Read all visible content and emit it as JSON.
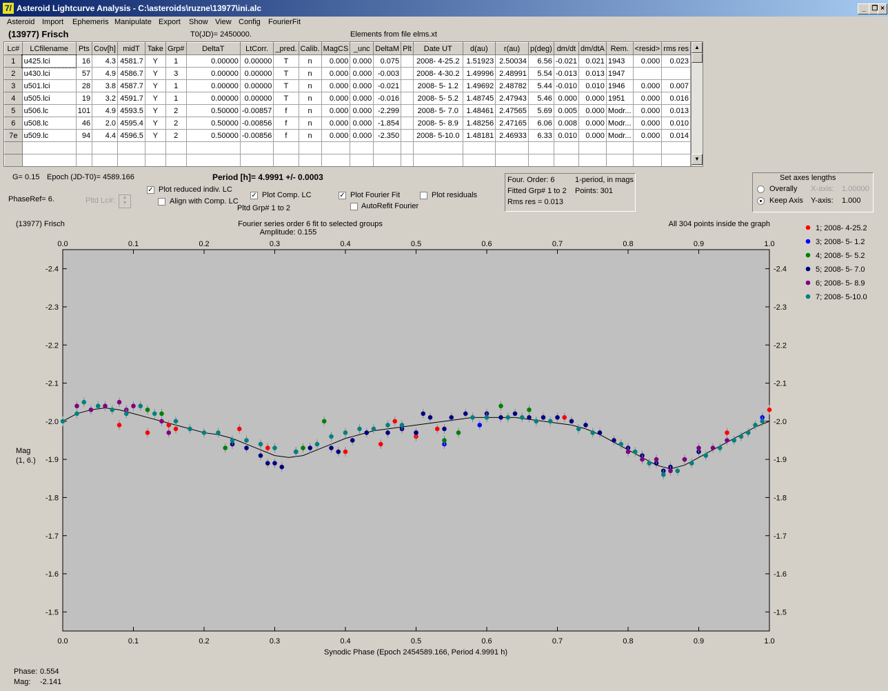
{
  "window": {
    "title": "Asteroid Lightcurve Analysis - C:\\asteroids\\ruzne\\13977\\ini.alc",
    "app_icon_glyph": "7/"
  },
  "menu": [
    "Asteroid",
    "Import",
    "Ephemeris",
    "Manipulate",
    "Export",
    "Show",
    "View",
    "Config",
    "FourierFit"
  ],
  "header": {
    "object": "(13977) Frisch",
    "t0": "T0(JD)= 2450000.",
    "elements": "Elements from file elms.xt"
  },
  "table": {
    "columns": [
      "Lc#",
      "LCfilename",
      "Pts",
      "Cov[h]",
      "midT",
      "Take",
      "Grp#",
      "DeltaT",
      "LtCorr.",
      "_pred.",
      "Calib.",
      "MagCS",
      "_unc",
      "DeltaM",
      "Plt",
      "Date UT",
      "d(au)",
      "r(au)",
      "p(deg)",
      "dm/dt",
      "dm/dtA",
      "Rem.",
      "<resid>",
      "rms res"
    ],
    "rows": [
      [
        "1",
        "u425.lci",
        "16",
        "4.3",
        "4581.7",
        "Y",
        "1",
        "0.00000",
        "0.00000",
        "T",
        "n",
        "0.000",
        "0.000",
        "0.075",
        "",
        "2008- 4-25.2",
        "1.51923",
        "2.50034",
        "6.56",
        "-0.021",
        "0.021",
        "1943",
        "0.000",
        "0.023"
      ],
      [
        "2",
        "u430.lci",
        "57",
        "4.9",
        "4586.7",
        "Y",
        "3",
        "0.00000",
        "0.00000",
        "T",
        "n",
        "0.000",
        "0.000",
        "-0.003",
        "",
        "2008- 4-30.2",
        "1.49996",
        "2.48991",
        "5.54",
        "-0.013",
        "0.013",
        "1947",
        "",
        ""
      ],
      [
        "3",
        "u501.lci",
        "28",
        "3.8",
        "4587.7",
        "Y",
        "1",
        "0.00000",
        "0.00000",
        "T",
        "n",
        "0.000",
        "0.000",
        "-0.021",
        "",
        "2008- 5- 1.2",
        "1.49692",
        "2.48782",
        "5.44",
        "-0.010",
        "0.010",
        "1946",
        "0.000",
        "0.007"
      ],
      [
        "4",
        "u505.lci",
        "19",
        "3.2",
        "4591.7",
        "Y",
        "1",
        "0.00000",
        "0.00000",
        "T",
        "n",
        "0.000",
        "0.000",
        "-0.016",
        "",
        "2008- 5- 5.2",
        "1.48745",
        "2.47943",
        "5.46",
        "0.000",
        "0.000",
        "1951",
        "0.000",
        "0.016"
      ],
      [
        "5",
        "u506.lc",
        "101",
        "4.9",
        "4593.5",
        "Y",
        "2",
        "0.50000",
        "-0.00857",
        "f",
        "n",
        "0.000",
        "0.000",
        "-2.299",
        "",
        "2008- 5- 7.0",
        "1.48461",
        "2.47565",
        "5.69",
        "0.005",
        "0.000",
        "Modr...",
        "0.000",
        "0.013"
      ],
      [
        "6",
        "u508.lc",
        "46",
        "2.0",
        "4595.4",
        "Y",
        "2",
        "0.50000",
        "-0.00856",
        "f",
        "n",
        "0.000",
        "0.000",
        "-1.854",
        "",
        "2008- 5- 8.9",
        "1.48256",
        "2.47165",
        "6.06",
        "0.008",
        "0.000",
        "Modr...",
        "0.000",
        "0.010"
      ],
      [
        "7e",
        "u509.lc",
        "94",
        "4.4",
        "4596.5",
        "Y",
        "2",
        "0.50000",
        "-0.00856",
        "f",
        "n",
        "0.000",
        "0.000",
        "-2.350",
        "",
        "2008- 5-10.0",
        "1.48181",
        "2.46933",
        "6.33",
        "0.010",
        "0.000",
        "Modr...",
        "0.000",
        "0.014"
      ],
      [
        "",
        "",
        "",
        "",
        "",
        "",
        "",
        "",
        "",
        "",
        "",
        "",
        "",
        "",
        "",
        "",
        "",
        "",
        "",
        "",
        "",
        "",
        "",
        ""
      ],
      [
        "",
        "",
        "",
        "",
        "",
        "",
        "",
        "",
        "",
        "",
        "",
        "",
        "",
        "",
        "",
        "",
        "",
        "",
        "",
        "",
        "",
        "",
        "",
        ""
      ]
    ]
  },
  "controls": {
    "g": "G= 0.15",
    "epoch": "Epoch (JD-T0)= 4589.166",
    "period": "Period [h]= 4.9991 +/- 0.0003",
    "phaseref": "PhaseRef= 6.",
    "pltd_lc": "Pltd Lc#:",
    "plot_reduced": "Plot reduced indiv. LC",
    "align_comp": "Align with Comp. LC",
    "plot_comp": "Plot Comp. LC",
    "pltd_grp": "Pltd Grp#  1   to   2",
    "plot_fourier": "Plot Fourier Fit",
    "autorefit": "AutoRefit Fourier",
    "plot_residuals": "Plot residuals"
  },
  "fourier_box": {
    "order": "Four. Order:  6",
    "mode": "1-period, in mags",
    "fitted": "Fitted Grp# 1 to 2",
    "points": "Points: 301",
    "rms": "Rms res      = 0.013"
  },
  "axes_box": {
    "title": "Set axes lengths",
    "overally": "Overally",
    "keep_axis": "Keep Axis",
    "x_label": "X-axis:",
    "x_value": "1.00000",
    "y_label": "Y-axis:",
    "y_value": "1.000"
  },
  "status": {
    "phase_label": "Phase:",
    "phase_value": "0.554",
    "mag_label": "Mag:",
    "mag_value": "-2.141"
  },
  "chart_data": {
    "type": "scatter",
    "title": "Fourier series order 6 fit to selected groups",
    "subtitle": "Amplitude: 0.155",
    "object_label": "(13977) Frisch",
    "note": "All 304 points inside the graph",
    "xlabel": "Synodic Phase (Epoch 2454589.166, Period 4.9991 h)",
    "ylabel": "Mag\n(1, 6.)",
    "xlim": [
      0.0,
      1.0
    ],
    "ylim": [
      -2.45,
      -1.45
    ],
    "y_inverted": true,
    "x_ticks": [
      "0.0",
      "0.1",
      "0.2",
      "0.3",
      "0.4",
      "0.5",
      "0.6",
      "0.7",
      "0.8",
      "0.9",
      "1.0"
    ],
    "y_ticks": [
      "-2.4",
      "-2.3",
      "-2.2",
      "-2.1",
      "-2.0",
      "-1.9",
      "-1.8",
      "-1.7",
      "-1.6",
      "-1.5"
    ],
    "grid": false,
    "legend_position": "right",
    "series": [
      {
        "name": "1; 2008- 4-25.2",
        "color": "#ff0000",
        "points": [
          [
            0.08,
            -1.99
          ],
          [
            0.12,
            -1.97
          ],
          [
            0.15,
            -1.99
          ],
          [
            0.16,
            -1.98
          ],
          [
            0.25,
            -1.98
          ],
          [
            0.29,
            -1.93
          ],
          [
            0.4,
            -1.92
          ],
          [
            0.45,
            -1.94
          ],
          [
            0.47,
            -2.0
          ],
          [
            0.5,
            -1.96
          ],
          [
            0.53,
            -1.98
          ],
          [
            0.71,
            -2.01
          ],
          [
            0.94,
            -1.97
          ],
          [
            1.0,
            -2.03
          ]
        ]
      },
      {
        "name": "3; 2008- 5- 1.2",
        "color": "#0000ff",
        "points": [
          [
            0.5,
            -1.97
          ],
          [
            0.54,
            -1.94
          ],
          [
            0.59,
            -1.99
          ],
          [
            0.99,
            -2.01
          ]
        ]
      },
      {
        "name": "4; 2008- 5- 5.2",
        "color": "#008000",
        "points": [
          [
            0.12,
            -2.03
          ],
          [
            0.14,
            -2.02
          ],
          [
            0.23,
            -1.93
          ],
          [
            0.34,
            -1.93
          ],
          [
            0.37,
            -2.0
          ],
          [
            0.54,
            -1.95
          ],
          [
            0.56,
            -1.97
          ],
          [
            0.62,
            -2.04
          ],
          [
            0.66,
            -2.03
          ]
        ]
      },
      {
        "name": "5; 2008- 5- 7.0",
        "color": "#000080",
        "points": [
          [
            0.24,
            -1.94
          ],
          [
            0.26,
            -1.93
          ],
          [
            0.28,
            -1.91
          ],
          [
            0.29,
            -1.89
          ],
          [
            0.3,
            -1.89
          ],
          [
            0.31,
            -1.88
          ],
          [
            0.33,
            -1.92
          ],
          [
            0.35,
            -1.93
          ],
          [
            0.38,
            -1.93
          ],
          [
            0.39,
            -1.92
          ],
          [
            0.41,
            -1.95
          ],
          [
            0.43,
            -1.97
          ],
          [
            0.46,
            -1.97
          ],
          [
            0.48,
            -1.98
          ],
          [
            0.5,
            -1.97
          ],
          [
            0.51,
            -2.02
          ],
          [
            0.52,
            -2.01
          ],
          [
            0.54,
            -1.98
          ],
          [
            0.55,
            -2.01
          ],
          [
            0.57,
            -2.02
          ],
          [
            0.6,
            -2.02
          ],
          [
            0.62,
            -2.01
          ],
          [
            0.64,
            -2.02
          ],
          [
            0.66,
            -2.01
          ],
          [
            0.68,
            -2.01
          ],
          [
            0.7,
            -2.01
          ],
          [
            0.72,
            -2.0
          ],
          [
            0.74,
            -1.99
          ],
          [
            0.76,
            -1.97
          ],
          [
            0.78,
            -1.95
          ],
          [
            0.8,
            -1.93
          ],
          [
            0.82,
            -1.91
          ],
          [
            0.84,
            -1.89
          ],
          [
            0.85,
            -1.87
          ],
          [
            0.86,
            -1.88
          ],
          [
            0.88,
            -1.9
          ],
          [
            0.9,
            -1.92
          ]
        ]
      },
      {
        "name": "6; 2008- 5- 8.9",
        "color": "#800080",
        "points": [
          [
            0.02,
            -2.04
          ],
          [
            0.04,
            -2.03
          ],
          [
            0.06,
            -2.04
          ],
          [
            0.08,
            -2.05
          ],
          [
            0.09,
            -2.03
          ],
          [
            0.1,
            -2.04
          ],
          [
            0.14,
            -2.0
          ],
          [
            0.15,
            -1.97
          ],
          [
            0.8,
            -1.92
          ],
          [
            0.82,
            -1.9
          ],
          [
            0.84,
            -1.9
          ],
          [
            0.86,
            -1.87
          ],
          [
            0.88,
            -1.9
          ],
          [
            0.9,
            -1.93
          ],
          [
            0.92,
            -1.93
          ],
          [
            0.94,
            -1.95
          ]
        ]
      },
      {
        "name": "7; 2008- 5-10.0",
        "color": "#008080",
        "points": [
          [
            0.0,
            -2.0
          ],
          [
            0.02,
            -2.02
          ],
          [
            0.03,
            -2.05
          ],
          [
            0.05,
            -2.04
          ],
          [
            0.07,
            -2.03
          ],
          [
            0.09,
            -2.02
          ],
          [
            0.11,
            -2.04
          ],
          [
            0.13,
            -2.02
          ],
          [
            0.16,
            -2.0
          ],
          [
            0.18,
            -1.98
          ],
          [
            0.2,
            -1.97
          ],
          [
            0.22,
            -1.97
          ],
          [
            0.24,
            -1.95
          ],
          [
            0.26,
            -1.95
          ],
          [
            0.28,
            -1.94
          ],
          [
            0.3,
            -1.93
          ],
          [
            0.33,
            -1.92
          ],
          [
            0.36,
            -1.94
          ],
          [
            0.38,
            -1.96
          ],
          [
            0.4,
            -1.97
          ],
          [
            0.42,
            -1.98
          ],
          [
            0.44,
            -1.98
          ],
          [
            0.46,
            -1.99
          ],
          [
            0.48,
            -1.99
          ],
          [
            0.58,
            -2.01
          ],
          [
            0.6,
            -2.01
          ],
          [
            0.63,
            -2.01
          ],
          [
            0.65,
            -2.01
          ],
          [
            0.67,
            -2.0
          ],
          [
            0.69,
            -2.0
          ],
          [
            0.73,
            -1.98
          ],
          [
            0.75,
            -1.97
          ],
          [
            0.79,
            -1.94
          ],
          [
            0.81,
            -1.92
          ],
          [
            0.83,
            -1.89
          ],
          [
            0.85,
            -1.86
          ],
          [
            0.87,
            -1.87
          ],
          [
            0.89,
            -1.89
          ],
          [
            0.91,
            -1.91
          ],
          [
            0.93,
            -1.93
          ],
          [
            0.95,
            -1.95
          ],
          [
            0.96,
            -1.96
          ],
          [
            0.97,
            -1.97
          ],
          [
            0.98,
            -1.99
          ],
          [
            0.99,
            -2.0
          ]
        ]
      }
    ],
    "fit_curve": [
      [
        0.0,
        -2.0
      ],
      [
        0.02,
        -2.02
      ],
      [
        0.04,
        -2.03
      ],
      [
        0.06,
        -2.035
      ],
      [
        0.08,
        -2.03
      ],
      [
        0.1,
        -2.02
      ],
      [
        0.12,
        -2.01
      ],
      [
        0.14,
        -2.0
      ],
      [
        0.16,
        -1.99
      ],
      [
        0.18,
        -1.98
      ],
      [
        0.2,
        -1.97
      ],
      [
        0.22,
        -1.965
      ],
      [
        0.24,
        -1.955
      ],
      [
        0.26,
        -1.94
      ],
      [
        0.28,
        -1.925
      ],
      [
        0.3,
        -1.91
      ],
      [
        0.32,
        -1.905
      ],
      [
        0.34,
        -1.91
      ],
      [
        0.36,
        -1.925
      ],
      [
        0.38,
        -1.94
      ],
      [
        0.4,
        -1.955
      ],
      [
        0.42,
        -1.965
      ],
      [
        0.44,
        -1.975
      ],
      [
        0.46,
        -1.98
      ],
      [
        0.48,
        -1.985
      ],
      [
        0.5,
        -1.99
      ],
      [
        0.52,
        -1.995
      ],
      [
        0.54,
        -2.0
      ],
      [
        0.56,
        -2.005
      ],
      [
        0.58,
        -2.01
      ],
      [
        0.6,
        -2.01
      ],
      [
        0.62,
        -2.01
      ],
      [
        0.64,
        -2.01
      ],
      [
        0.66,
        -2.005
      ],
      [
        0.68,
        -2.0
      ],
      [
        0.7,
        -1.995
      ],
      [
        0.72,
        -1.99
      ],
      [
        0.74,
        -1.98
      ],
      [
        0.76,
        -1.965
      ],
      [
        0.78,
        -1.945
      ],
      [
        0.8,
        -1.925
      ],
      [
        0.82,
        -1.905
      ],
      [
        0.84,
        -1.885
      ],
      [
        0.86,
        -1.875
      ],
      [
        0.88,
        -1.885
      ],
      [
        0.9,
        -1.905
      ],
      [
        0.92,
        -1.925
      ],
      [
        0.94,
        -1.945
      ],
      [
        0.96,
        -1.965
      ],
      [
        0.98,
        -1.985
      ],
      [
        1.0,
        -2.0
      ]
    ]
  }
}
